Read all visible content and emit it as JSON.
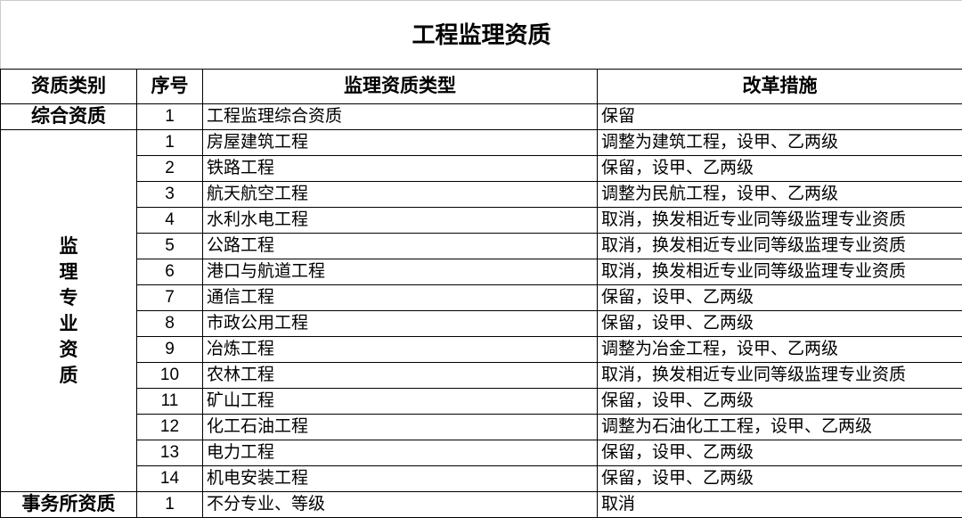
{
  "title": "工程监理资质",
  "headers": [
    "资质类别",
    "序号",
    "监理资质类型",
    "改革措施"
  ],
  "groups": {
    "comprehensive": {
      "category": "综合资质",
      "rows": [
        {
          "no": "1",
          "type": "工程监理综合资质",
          "measure": "保留"
        }
      ]
    },
    "specialty": {
      "category_chars": [
        "监",
        "理",
        "专",
        "业",
        "资",
        "质"
      ],
      "rows": [
        {
          "no": "1",
          "type": "房屋建筑工程",
          "measure": "调整为建筑工程，设甲、乙两级"
        },
        {
          "no": "2",
          "type": "铁路工程",
          "measure": "保留，设甲、乙两级"
        },
        {
          "no": "3",
          "type": "航天航空工程",
          "measure": "调整为民航工程，设甲、乙两级"
        },
        {
          "no": "4",
          "type": "水利水电工程",
          "measure": "取消，换发相近专业同等级监理专业资质"
        },
        {
          "no": "5",
          "type": "公路工程",
          "measure": "取消，换发相近专业同等级监理专业资质"
        },
        {
          "no": "6",
          "type": "港口与航道工程",
          "measure": "取消，换发相近专业同等级监理专业资质"
        },
        {
          "no": "7",
          "type": "通信工程",
          "measure": "保留，设甲、乙两级"
        },
        {
          "no": "8",
          "type": "市政公用工程",
          "measure": "保留，设甲、乙两级"
        },
        {
          "no": "9",
          "type": "冶炼工程",
          "measure": "调整为冶金工程，设甲、乙两级"
        },
        {
          "no": "10",
          "type": "农林工程",
          "measure": "取消，换发相近专业同等级监理专业资质"
        },
        {
          "no": "11",
          "type": "矿山工程",
          "measure": "保留，设甲、乙两级"
        },
        {
          "no": "12",
          "type": "化工石油工程",
          "measure": "调整为石油化工工程，设甲、乙两级"
        },
        {
          "no": "13",
          "type": "电力工程",
          "measure": "保留，设甲、乙两级"
        },
        {
          "no": "14",
          "type": "机电安装工程",
          "measure": "保留，设甲、乙两级"
        }
      ]
    },
    "firm": {
      "category": "事务所资质",
      "rows": [
        {
          "no": "1",
          "type": "不分专业、等级",
          "measure": "取消"
        }
      ]
    }
  }
}
